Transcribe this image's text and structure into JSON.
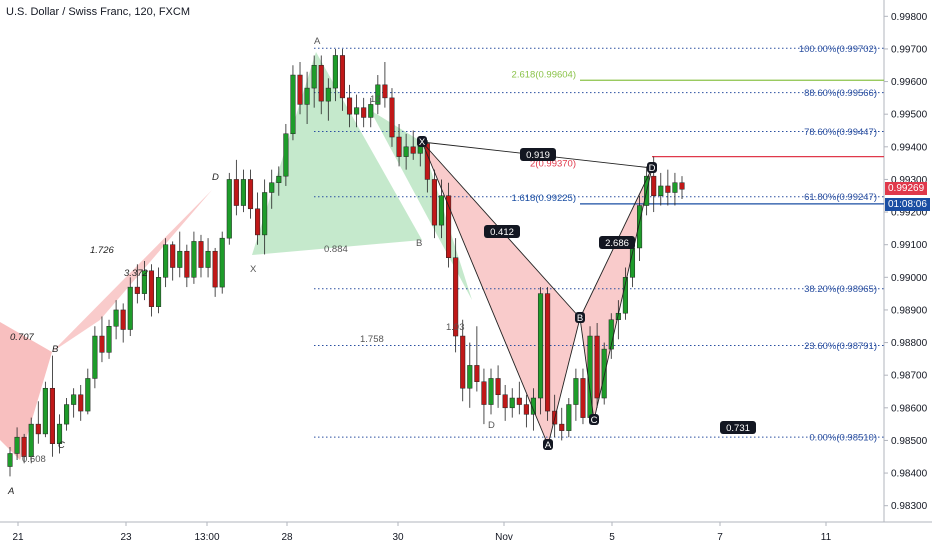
{
  "title": "U.S. Dollar / Swiss Franc, 120, FXCM",
  "colors": {
    "up": "#1e9c2a",
    "down": "#c01818",
    "fib": "#2a4fa0",
    "green_fill": "#7fcf8f",
    "red_fill": "#f28b8b",
    "price_tag": "#e0394b",
    "blue_line": "#1a4ea3",
    "red_line": "#e0394b",
    "lime_line": "#8bc34a"
  },
  "price_tag": {
    "price": "0.99269",
    "countdown": "01:08:06"
  },
  "chart_data": {
    "type": "candlestick",
    "title": "U.S. Dollar / Swiss Franc, 120, FXCM",
    "x_ticks": [
      "21",
      "23",
      "13:00",
      "28",
      "30",
      "Nov",
      "5",
      "7",
      "11"
    ],
    "y_ticks": [
      "0.99800",
      "0.99700",
      "0.99600",
      "0.99500",
      "0.99400",
      "0.99300",
      "0.99200",
      "0.99100",
      "0.99000",
      "0.98900",
      "0.98800",
      "0.98700",
      "0.98600",
      "0.98500",
      "0.98400",
      "0.98300"
    ],
    "ylim": [
      0.9825,
      0.9985
    ],
    "fib_levels": [
      {
        "label": "100.00%(0.99702)",
        "price": 0.99702
      },
      {
        "label": "88.60%(0.99566)",
        "price": 0.99566
      },
      {
        "label": "78.60%(0.99447)",
        "price": 0.99447
      },
      {
        "label": "61.80%(0.99247)",
        "price": 0.99247
      },
      {
        "label": "38.20%(0.98965)",
        "price": 0.98965
      },
      {
        "label": "23.60%(0.98791)",
        "price": 0.98791
      },
      {
        "label": "0.00%(0.98510)",
        "price": 0.9851
      }
    ],
    "extensions": [
      {
        "label": "2.618(0.99604)",
        "price": 0.99604,
        "color": "#8bc34a"
      },
      {
        "label": "2(0.99370)",
        "price": 0.9937,
        "color": "#e0394b"
      },
      {
        "label": "1.618(0.99225)",
        "price": 0.99225,
        "color": "#1a4ea3"
      }
    ],
    "pattern_points": [
      "X",
      "A",
      "B",
      "C",
      "D"
    ],
    "ratio_labels": [
      "0.919",
      "0.412",
      "0.731",
      "2.686"
    ],
    "left_labels": [
      "0.707",
      "1.726",
      "3.372",
      "0.884",
      "1.758",
      "0.608",
      "1.93",
      "13"
    ],
    "left_points": [
      "A",
      "B",
      "C",
      "D",
      "X",
      "A",
      "B",
      "D"
    ],
    "candles": [
      [
        0.9842,
        0.9848,
        0.9839,
        0.9846
      ],
      [
        0.9846,
        0.9854,
        0.9844,
        0.9851
      ],
      [
        0.9851,
        0.9852,
        0.9843,
        0.9845
      ],
      [
        0.9845,
        0.9857,
        0.9843,
        0.9855
      ],
      [
        0.9855,
        0.9862,
        0.9849,
        0.9852
      ],
      [
        0.9852,
        0.9868,
        0.9851,
        0.9866
      ],
      [
        0.9866,
        0.9876,
        0.9845,
        0.9849
      ],
      [
        0.9849,
        0.9858,
        0.9846,
        0.9855
      ],
      [
        0.9855,
        0.9863,
        0.9853,
        0.9861
      ],
      [
        0.9861,
        0.9866,
        0.9857,
        0.9864
      ],
      [
        0.9864,
        0.9867,
        0.9856,
        0.9859
      ],
      [
        0.9859,
        0.9872,
        0.9858,
        0.9869
      ],
      [
        0.9869,
        0.9885,
        0.9866,
        0.9882
      ],
      [
        0.9882,
        0.9888,
        0.9874,
        0.9877
      ],
      [
        0.9877,
        0.9887,
        0.9875,
        0.9885
      ],
      [
        0.9885,
        0.9893,
        0.9881,
        0.989
      ],
      [
        0.989,
        0.9892,
        0.988,
        0.9884
      ],
      [
        0.9884,
        0.99,
        0.9882,
        0.9897
      ],
      [
        0.9897,
        0.9904,
        0.9892,
        0.9895
      ],
      [
        0.9895,
        0.9905,
        0.9893,
        0.9902
      ],
      [
        0.9902,
        0.9904,
        0.9888,
        0.9891
      ],
      [
        0.9891,
        0.9903,
        0.9889,
        0.99
      ],
      [
        0.99,
        0.9912,
        0.9897,
        0.991
      ],
      [
        0.991,
        0.9911,
        0.9899,
        0.9903
      ],
      [
        0.9903,
        0.9914,
        0.99,
        0.9908
      ],
      [
        0.9908,
        0.991,
        0.9897,
        0.99
      ],
      [
        0.99,
        0.9914,
        0.9898,
        0.9911
      ],
      [
        0.9911,
        0.9913,
        0.99,
        0.9903
      ],
      [
        0.9903,
        0.9912,
        0.99,
        0.9908
      ],
      [
        0.9908,
        0.9909,
        0.9894,
        0.9897
      ],
      [
        0.9897,
        0.9914,
        0.9895,
        0.9912
      ],
      [
        0.9912,
        0.9932,
        0.991,
        0.993
      ],
      [
        0.993,
        0.9936,
        0.9919,
        0.9922
      ],
      [
        0.9922,
        0.9933,
        0.992,
        0.993
      ],
      [
        0.993,
        0.9933,
        0.9918,
        0.9921
      ],
      [
        0.9921,
        0.9926,
        0.991,
        0.9913
      ],
      [
        0.9913,
        0.993,
        0.9907,
        0.9926
      ],
      [
        0.9926,
        0.9933,
        0.9921,
        0.9929
      ],
      [
        0.9929,
        0.9934,
        0.9925,
        0.9931
      ],
      [
        0.9931,
        0.9947,
        0.9928,
        0.9944
      ],
      [
        0.9944,
        0.9965,
        0.9942,
        0.9962
      ],
      [
        0.9962,
        0.9966,
        0.995,
        0.9953
      ],
      [
        0.9953,
        0.9963,
        0.9947,
        0.9958
      ],
      [
        0.9958,
        0.9968,
        0.9952,
        0.9965
      ],
      [
        0.9965,
        0.9968,
        0.995,
        0.9954
      ],
      [
        0.9954,
        0.9961,
        0.9948,
        0.9958
      ],
      [
        0.9958,
        0.997,
        0.9954,
        0.9968
      ],
      [
        0.9968,
        0.997,
        0.9951,
        0.9955
      ],
      [
        0.9955,
        0.9959,
        0.9946,
        0.995
      ],
      [
        0.995,
        0.9956,
        0.9946,
        0.9952
      ],
      [
        0.9952,
        0.9955,
        0.9946,
        0.9949
      ],
      [
        0.9949,
        0.9955,
        0.9946,
        0.9953
      ],
      [
        0.9953,
        0.9962,
        0.995,
        0.9959
      ],
      [
        0.9959,
        0.9966,
        0.9952,
        0.9955
      ],
      [
        0.9955,
        0.9958,
        0.994,
        0.9943
      ],
      [
        0.9943,
        0.9947,
        0.9934,
        0.9937
      ],
      [
        0.9937,
        0.9944,
        0.9933,
        0.994
      ],
      [
        0.994,
        0.9945,
        0.9936,
        0.9938
      ],
      [
        0.9938,
        0.9943,
        0.9934,
        0.9941
      ],
      [
        0.9941,
        0.9942,
        0.9926,
        0.993
      ],
      [
        0.993,
        0.9933,
        0.9912,
        0.9916
      ],
      [
        0.9916,
        0.993,
        0.9912,
        0.9925
      ],
      [
        0.9925,
        0.9929,
        0.9903,
        0.9906
      ],
      [
        0.9906,
        0.9912,
        0.9877,
        0.9882
      ],
      [
        0.9882,
        0.9887,
        0.9862,
        0.9866
      ],
      [
        0.9866,
        0.988,
        0.986,
        0.9873
      ],
      [
        0.9873,
        0.9885,
        0.9865,
        0.9868
      ],
      [
        0.9868,
        0.9872,
        0.9855,
        0.9861
      ],
      [
        0.9861,
        0.9872,
        0.9858,
        0.9869
      ],
      [
        0.9869,
        0.9873,
        0.986,
        0.9864
      ],
      [
        0.9864,
        0.9867,
        0.9856,
        0.986
      ],
      [
        0.986,
        0.9866,
        0.9857,
        0.9863
      ],
      [
        0.9863,
        0.9868,
        0.9858,
        0.9861
      ],
      [
        0.9861,
        0.9864,
        0.9854,
        0.9858
      ],
      [
        0.9858,
        0.9866,
        0.9853,
        0.9863
      ],
      [
        0.9863,
        0.9897,
        0.9858,
        0.9895
      ],
      [
        0.9895,
        0.9897,
        0.9856,
        0.9859
      ],
      [
        0.9859,
        0.9864,
        0.9851,
        0.9855
      ],
      [
        0.9855,
        0.986,
        0.985,
        0.9853
      ],
      [
        0.9853,
        0.9863,
        0.9851,
        0.9861
      ],
      [
        0.9861,
        0.9872,
        0.9856,
        0.9869
      ],
      [
        0.9869,
        0.9872,
        0.9855,
        0.9857
      ],
      [
        0.9857,
        0.9885,
        0.9855,
        0.9882
      ],
      [
        0.9882,
        0.9886,
        0.986,
        0.9863
      ],
      [
        0.9863,
        0.988,
        0.9861,
        0.9878
      ],
      [
        0.9878,
        0.9889,
        0.9875,
        0.9887
      ],
      [
        0.9887,
        0.9893,
        0.9881,
        0.9889
      ],
      [
        0.9889,
        0.9903,
        0.9887,
        0.99
      ],
      [
        0.99,
        0.9912,
        0.9897,
        0.9909
      ],
      [
        0.9909,
        0.9925,
        0.9905,
        0.9922
      ],
      [
        0.9922,
        0.9934,
        0.9919,
        0.9931
      ],
      [
        0.9931,
        0.9937,
        0.992,
        0.9925
      ],
      [
        0.9925,
        0.9932,
        0.9922,
        0.9928
      ],
      [
        0.9928,
        0.9933,
        0.9922,
        0.9926
      ],
      [
        0.9926,
        0.9932,
        0.9922,
        0.9929
      ],
      [
        0.9929,
        0.9931,
        0.9924,
        0.9927
      ]
    ]
  }
}
